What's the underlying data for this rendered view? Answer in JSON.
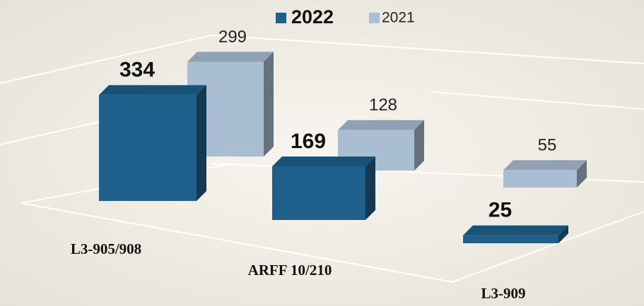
{
  "chart_data": {
    "type": "bar3d",
    "categories": [
      "L3-905/908",
      "ARFF 10/210",
      "L3-909"
    ],
    "series": [
      {
        "name": "2022",
        "color": "#1f5f8b",
        "values": [
          334,
          169,
          25
        ]
      },
      {
        "name": "2021",
        "color": "#a9bdd3",
        "values": [
          299,
          128,
          55
        ]
      }
    ]
  }
}
